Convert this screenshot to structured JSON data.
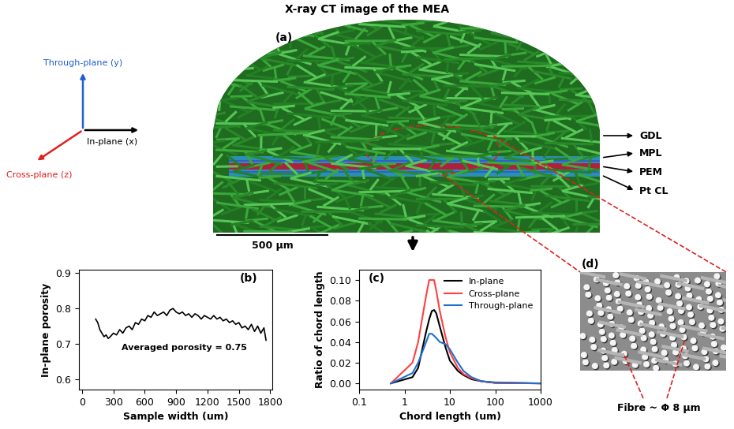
{
  "title": "X-ray CT image of the MEA",
  "panel_a": {
    "label": "(a)",
    "layers": [
      "GDL",
      "MPL",
      "PEM",
      "Pt CL"
    ],
    "directions": [
      {
        "text": "Through-plane (y)",
        "color": "#1f5fd0"
      },
      {
        "text": "Cross-plane (z)",
        "color": "#e02020"
      },
      {
        "text": "In-plane (x)",
        "color": "#000000"
      }
    ],
    "scale_bar": "500 µm"
  },
  "panel_d": {
    "label": "(d)",
    "annotation": "Fibre ~ Φ 8 µm"
  },
  "chart_data": [
    {
      "type": "line",
      "annotations": [
        "(b)",
        "Averaged porosity = 0.75"
      ],
      "x_label": "Sample width (um)",
      "y_label": "In-plane porosity",
      "color": "#000000",
      "x": [
        130,
        150,
        170,
        190,
        210,
        230,
        250,
        270,
        300,
        330,
        360,
        390,
        420,
        450,
        480,
        510,
        540,
        570,
        600,
        630,
        660,
        690,
        720,
        750,
        780,
        810,
        840,
        870,
        900,
        930,
        960,
        990,
        1020,
        1050,
        1080,
        1110,
        1140,
        1170,
        1200,
        1230,
        1260,
        1290,
        1320,
        1350,
        1380,
        1410,
        1440,
        1470,
        1500,
        1530,
        1560,
        1590,
        1620,
        1650,
        1680,
        1710,
        1740,
        1760
      ],
      "values": [
        0.77,
        0.76,
        0.74,
        0.73,
        0.72,
        0.725,
        0.715,
        0.72,
        0.73,
        0.725,
        0.74,
        0.73,
        0.745,
        0.75,
        0.74,
        0.76,
        0.755,
        0.77,
        0.765,
        0.78,
        0.775,
        0.79,
        0.78,
        0.785,
        0.79,
        0.78,
        0.795,
        0.8,
        0.79,
        0.785,
        0.79,
        0.78,
        0.785,
        0.775,
        0.785,
        0.78,
        0.77,
        0.78,
        0.775,
        0.77,
        0.78,
        0.77,
        0.775,
        0.765,
        0.77,
        0.76,
        0.765,
        0.755,
        0.76,
        0.745,
        0.75,
        0.74,
        0.755,
        0.735,
        0.75,
        0.73,
        0.745,
        0.71
      ],
      "xlim": [
        -30,
        1820
      ],
      "xticks": [
        0,
        300,
        600,
        900,
        1200,
        1500,
        1800
      ],
      "ylim": [
        0.57,
        0.91
      ],
      "yticks": [
        0.6,
        0.7,
        0.8,
        0.9
      ]
    },
    {
      "type": "line",
      "log": "x",
      "annotations": [
        "(c)"
      ],
      "x_label": "Chord length (um)",
      "y_label": "Ratio of chord length",
      "x": [
        0.5,
        1.5,
        2,
        3,
        3.5,
        4,
        4.5,
        5,
        6,
        8,
        10,
        15,
        20,
        30,
        50,
        100,
        1000
      ],
      "series": [
        {
          "name": "In-plane",
          "color": "#000000",
          "values": [
            0,
            0.006,
            0.015,
            0.05,
            0.062,
            0.07,
            0.071,
            0.068,
            0.055,
            0.035,
            0.022,
            0.012,
            0.008,
            0.004,
            0.002,
            0.0005,
            0
          ]
        },
        {
          "name": "Cross-plane",
          "color": "#ff4040",
          "values": [
            0,
            0.02,
            0.04,
            0.085,
            0.1,
            0.1,
            0.1,
            0.09,
            0.07,
            0.045,
            0.03,
            0.015,
            0.009,
            0.005,
            0.002,
            0.0005,
            0
          ]
        },
        {
          "name": "Through-plane",
          "color": "#1f6fd0",
          "values": [
            0,
            0.01,
            0.02,
            0.04,
            0.048,
            0.048,
            0.046,
            0.044,
            0.04,
            0.038,
            0.033,
            0.02,
            0.012,
            0.006,
            0.002,
            0.001,
            0
          ]
        }
      ],
      "legend": "upper right",
      "xlim": [
        0.1,
        1000
      ],
      "xticks": [
        0.1,
        1,
        10,
        100,
        1000
      ],
      "ylim": [
        -0.006,
        0.11
      ],
      "yticks": [
        {
          "value": 0,
          "label": "0.00"
        },
        {
          "value": 0.02,
          "label": "0.02"
        },
        {
          "value": 0.04,
          "label": "0.04"
        },
        {
          "value": 0.06,
          "label": "0.06"
        },
        {
          "value": 0.08,
          "label": "0.08"
        },
        {
          "value": 0.1,
          "label": "0.10"
        }
      ]
    }
  ]
}
